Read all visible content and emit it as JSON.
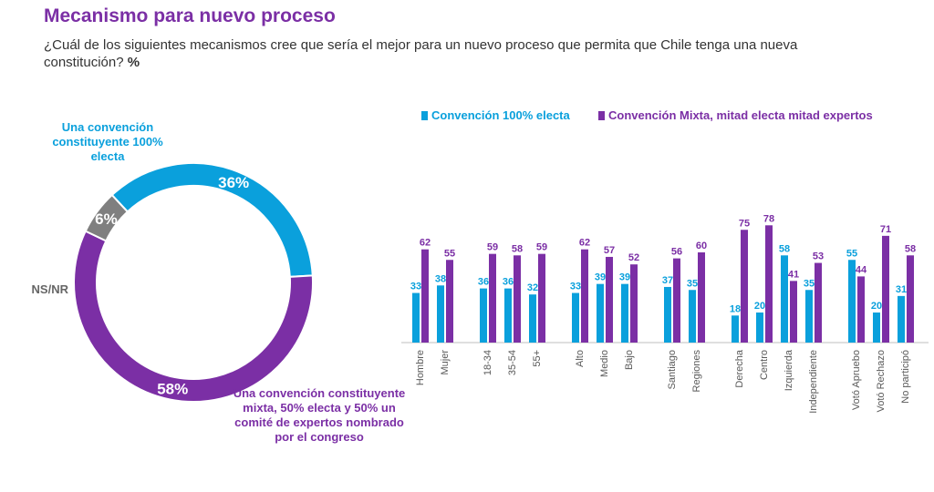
{
  "title": "Mecanismo para nuevo proceso",
  "question": "¿Cuál de los siguientes mecanismos cree que sería el mejor para un nuevo proceso que permita que Chile tenga una nueva constitución?",
  "unit": "%",
  "colors": {
    "blue": "#0aa0dc",
    "purple": "#7b2fa5",
    "gray": "#7f7f7f",
    "axis": "#bfbfbf"
  },
  "chart_data": [
    {
      "type": "pie",
      "style": "donut",
      "slices": [
        {
          "label": "Una convención constituyente 100% electa",
          "value": 36,
          "value_label": "36%",
          "color": "#0aa0dc"
        },
        {
          "label": "Una convención constituyente mixta, 50% electa y 50% un comité de expertos nombrado por el congreso",
          "value": 58,
          "value_label": "58%",
          "color": "#7b2fa5"
        },
        {
          "label": "NS/NR",
          "value": 6,
          "value_label": "6%",
          "color": "#7f7f7f"
        }
      ]
    },
    {
      "type": "bar",
      "legend_position": "top",
      "grid": false,
      "ylim": [
        0,
        85
      ],
      "series": [
        {
          "name": "Convención 100% electa",
          "color": "#0aa0dc",
          "values": [
            33,
            38,
            36,
            36,
            32,
            33,
            39,
            39,
            37,
            35,
            18,
            20,
            58,
            35,
            55,
            20,
            31
          ]
        },
        {
          "name": "Convención Mixta, mitad electa mitad expertos",
          "color": "#7b2fa5",
          "values": [
            62,
            55,
            59,
            58,
            59,
            62,
            57,
            52,
            56,
            60,
            75,
            78,
            41,
            53,
            44,
            71,
            58
          ]
        }
      ],
      "groups": [
        {
          "categories": [
            "Hombre",
            "Mujer"
          ]
        },
        {
          "categories": [
            "18-34",
            "35-54",
            "55+"
          ]
        },
        {
          "categories": [
            "Alto",
            "Medio",
            "Bajo"
          ]
        },
        {
          "categories": [
            "Santiago",
            "Regiones"
          ]
        },
        {
          "categories": [
            "Derecha",
            "Centro",
            "Izquierda",
            "Independiente"
          ]
        },
        {
          "categories": [
            "Votó Apruebo",
            "Votó Rechazo",
            "No participó"
          ]
        }
      ]
    }
  ]
}
